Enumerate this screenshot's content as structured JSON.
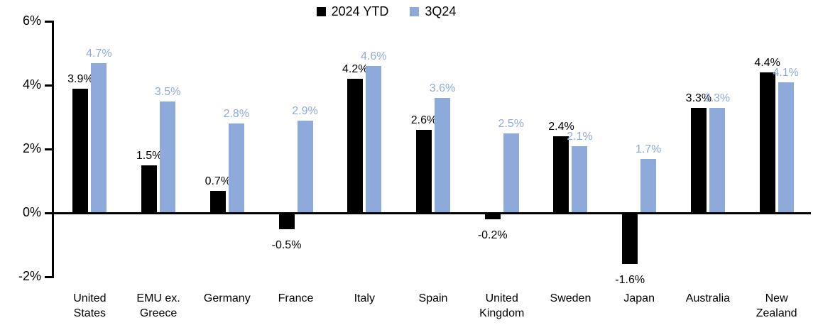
{
  "chart_data": {
    "type": "bar",
    "title": "",
    "xlabel": "",
    "ylabel": "",
    "categories": [
      "United States",
      "EMU ex. Greece",
      "Germany",
      "France",
      "Italy",
      "Spain",
      "United Kingdom",
      "Sweden",
      "Japan",
      "Australia",
      "New Zealand"
    ],
    "series": [
      {
        "name": "2024 YTD",
        "color": "#000000",
        "values": [
          3.9,
          1.5,
          0.7,
          -0.5,
          4.2,
          2.6,
          -0.2,
          2.4,
          -1.6,
          3.3,
          4.4
        ]
      },
      {
        "name": "3Q24",
        "color": "#8EAADB",
        "values": [
          4.7,
          3.5,
          2.8,
          2.9,
          4.6,
          3.6,
          2.5,
          2.1,
          1.7,
          3.3,
          4.1
        ]
      }
    ],
    "data_labels": {
      "2024 YTD": [
        "3.9%",
        "1.5%",
        "0.7%",
        "-0.5%",
        "4.2%",
        "2.6%",
        "-0.2%",
        "2.4%",
        "-1.6%",
        "3.3%",
        "4.4%"
      ],
      "3Q24": [
        "4.7%",
        "3.5%",
        "2.8%",
        "2.9%",
        "4.6%",
        "3.6%",
        "2.5%",
        "2.1%",
        "1.7%",
        "3.3%",
        "4.1%"
      ]
    },
    "y_axis": {
      "ticks": [
        {
          "label": "6%",
          "value": 6
        },
        {
          "label": "4%",
          "value": 4
        },
        {
          "label": "2%",
          "value": 2
        },
        {
          "label": "0%",
          "value": 0
        },
        {
          "label": "-2%",
          "value": -2
        }
      ],
      "ylim": [
        -2,
        6
      ]
    },
    "value_suffix": "%",
    "grid": false,
    "legend_position": "top-center"
  }
}
